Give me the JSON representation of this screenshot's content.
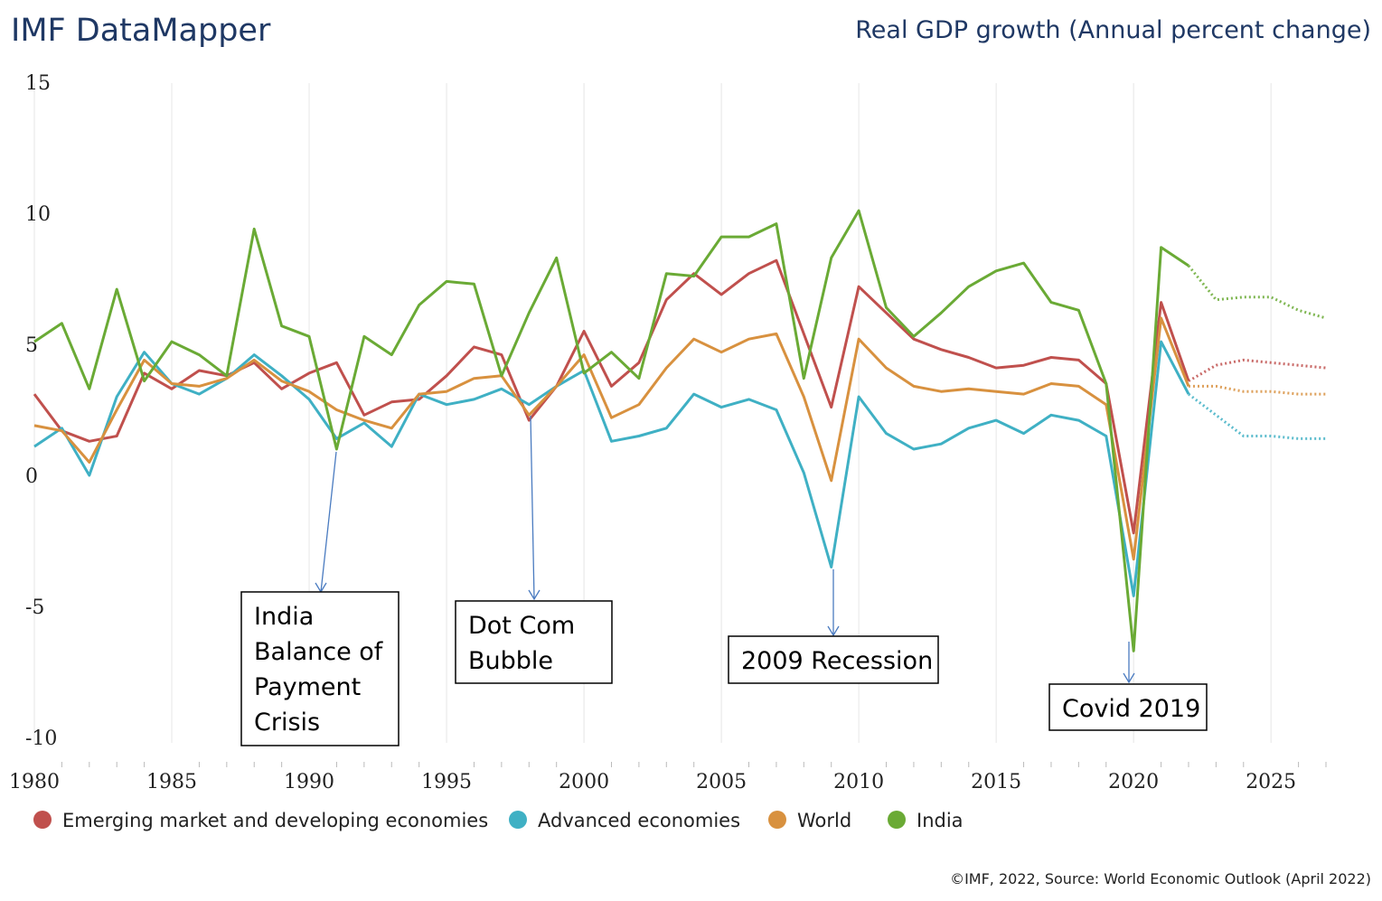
{
  "header": {
    "brand": "IMF DataMapper",
    "title": "Real GDP growth (Annual percent change)"
  },
  "footer": {
    "credit": "©IMF, 2022, Source: World Economic Outlook (April 2022)"
  },
  "chart_data": {
    "type": "line",
    "title": "Real GDP growth (Annual percent change)",
    "xlim": [
      1980,
      2027
    ],
    "ylim": [
      -10,
      15
    ],
    "xticks": [
      "1980",
      "1985",
      "1990",
      "1995",
      "2000",
      "2005",
      "2010",
      "2015",
      "2020",
      "2025"
    ],
    "yticks": [
      "15",
      "10",
      "5",
      "0",
      "-5",
      "-10"
    ],
    "grid": "vertical",
    "legend": "bottom",
    "forecast_from": 2022,
    "x": [
      1980,
      1981,
      1982,
      1983,
      1984,
      1985,
      1986,
      1987,
      1988,
      1989,
      1990,
      1991,
      1992,
      1993,
      1994,
      1995,
      1996,
      1997,
      1998,
      1999,
      2000,
      2001,
      2002,
      2003,
      2004,
      2005,
      2006,
      2007,
      2008,
      2009,
      2010,
      2011,
      2012,
      2013,
      2014,
      2015,
      2016,
      2017,
      2018,
      2019,
      2020,
      2021,
      2022,
      2023,
      2024,
      2025,
      2026,
      2027
    ],
    "series": [
      {
        "name": "Emerging market and developing economies",
        "color": "#c0504d",
        "values": [
          3.1,
          1.7,
          1.3,
          1.5,
          3.9,
          3.3,
          4.0,
          3.8,
          4.3,
          3.3,
          3.9,
          4.3,
          2.3,
          2.8,
          2.9,
          3.8,
          4.9,
          4.6,
          2.1,
          3.4,
          5.5,
          3.4,
          4.3,
          6.7,
          7.7,
          6.9,
          7.7,
          8.2,
          5.4,
          2.6,
          7.2,
          6.2,
          5.2,
          4.8,
          4.5,
          4.1,
          4.2,
          4.5,
          4.4,
          3.5,
          -2.2,
          6.6,
          3.6,
          4.2,
          4.4,
          4.3,
          4.2,
          4.1
        ]
      },
      {
        "name": "Advanced economies",
        "color": "#3fb0c4",
        "values": [
          1.1,
          1.8,
          0.0,
          3.0,
          4.7,
          3.5,
          3.1,
          3.7,
          4.6,
          3.8,
          2.9,
          1.4,
          2.0,
          1.1,
          3.1,
          2.7,
          2.9,
          3.3,
          2.7,
          3.4,
          4.0,
          1.3,
          1.5,
          1.8,
          3.1,
          2.6,
          2.9,
          2.5,
          0.1,
          -3.5,
          3.0,
          1.6,
          1.0,
          1.2,
          1.8,
          2.1,
          1.6,
          2.3,
          2.1,
          1.5,
          -4.6,
          5.1,
          3.1,
          2.3,
          1.5,
          1.5,
          1.4,
          1.4
        ]
      },
      {
        "name": "World",
        "color": "#d8913f",
        "values": [
          1.9,
          1.7,
          0.5,
          2.5,
          4.4,
          3.5,
          3.4,
          3.7,
          4.4,
          3.6,
          3.2,
          2.5,
          2.1,
          1.8,
          3.1,
          3.2,
          3.7,
          3.8,
          2.3,
          3.4,
          4.6,
          2.2,
          2.7,
          4.1,
          5.2,
          4.7,
          5.2,
          5.4,
          3.0,
          -0.2,
          5.2,
          4.1,
          3.4,
          3.2,
          3.3,
          3.2,
          3.1,
          3.5,
          3.4,
          2.7,
          -3.2,
          6.0,
          3.4,
          3.4,
          3.2,
          3.2,
          3.1,
          3.1
        ]
      },
      {
        "name": "India",
        "color": "#6aaa35",
        "values": [
          5.1,
          5.8,
          3.3,
          7.1,
          3.6,
          5.1,
          4.6,
          3.8,
          9.4,
          5.7,
          5.3,
          1.0,
          5.3,
          4.6,
          6.5,
          7.4,
          7.3,
          3.8,
          6.2,
          8.3,
          3.9,
          4.7,
          3.7,
          7.7,
          7.6,
          9.1,
          9.1,
          9.6,
          3.7,
          8.3,
          10.1,
          6.4,
          5.3,
          6.2,
          7.2,
          7.8,
          8.1,
          6.6,
          6.3,
          3.5,
          -6.7,
          8.7,
          8.0,
          6.7,
          6.8,
          6.8,
          6.3,
          6.0
        ]
      }
    ],
    "annotations": [
      {
        "lines": [
          "India",
          "Balance of",
          "Payment",
          "Crisis"
        ],
        "year": 1991
      },
      {
        "lines": [
          "Dot Com",
          "Bubble"
        ],
        "year": 1998
      },
      {
        "lines": [
          "2009 Recession"
        ],
        "year": 2009
      },
      {
        "lines": [
          "Covid 2019"
        ],
        "year": 2020
      }
    ]
  }
}
